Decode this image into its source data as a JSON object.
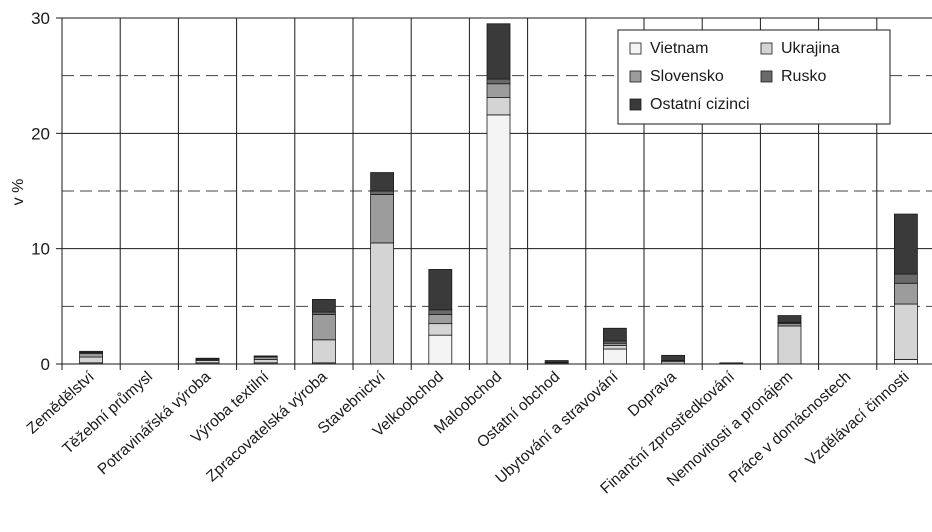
{
  "chart_data": {
    "type": "bar",
    "stacked": true,
    "ylabel": "v %",
    "ylim": [
      0,
      30
    ],
    "yticks": [
      0,
      10,
      20,
      30
    ],
    "dashed_gridlines": [
      5,
      15,
      25
    ],
    "legend_position": "top-right",
    "categories": [
      "Zemědělství",
      "Těžební průmysl",
      "Potravinářská výroba",
      "Výroba textilní",
      "Zpracovatelská výroba",
      "Stavebnictví",
      "Velkoobchod",
      "Maloobchod",
      "Ostatní obchod",
      "Ubytování a stravování",
      "Doprava",
      "Finanční zprostředkování",
      "Nemovitosti a pronájem",
      "Práce v domácnostech",
      "Vzdělávací činnosti"
    ],
    "series": [
      {
        "name": "Vietnam",
        "color": "#f4f4f4",
        "values": [
          0.1,
          0,
          0.1,
          0.1,
          0.1,
          0,
          2.5,
          21.6,
          0,
          1.3,
          0,
          0,
          0,
          0,
          0.4
        ]
      },
      {
        "name": "Ukrajina",
        "color": "#d4d4d4",
        "values": [
          0.5,
          0,
          0.2,
          0.3,
          2.0,
          10.5,
          1.0,
          1.5,
          0,
          0.3,
          0.2,
          0,
          3.3,
          0,
          4.8
        ]
      },
      {
        "name": "Slovensko",
        "color": "#9c9c9c",
        "values": [
          0.3,
          0,
          0.1,
          0.2,
          2.2,
          4.2,
          0.8,
          1.2,
          0.1,
          0.2,
          0.1,
          0,
          0.2,
          0,
          1.8
        ]
      },
      {
        "name": "Rusko",
        "color": "#6a6a6a",
        "values": [
          0.1,
          0,
          0.05,
          0.05,
          0.2,
          0.3,
          0.4,
          0.4,
          0.05,
          0.2,
          0,
          0,
          0.1,
          0,
          0.8
        ]
      },
      {
        "name": "Ostatní cizinci",
        "color": "#3a3a3a",
        "values": [
          0.1,
          0,
          0.05,
          0.05,
          1.1,
          1.6,
          3.5,
          4.8,
          0.15,
          1.1,
          0.45,
          0.1,
          0.6,
          0,
          5.2
        ]
      }
    ]
  }
}
